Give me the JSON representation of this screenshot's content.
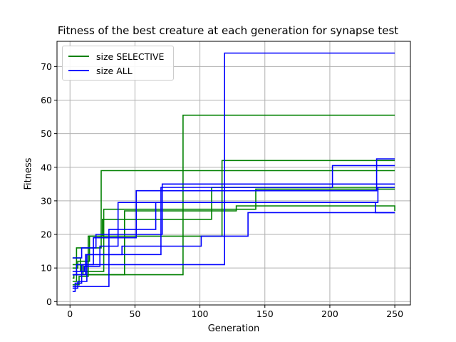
{
  "chart_data": {
    "type": "line",
    "title": "Fitness of the best creature at each generation for synapse test",
    "xlabel": "Generation",
    "ylabel": "Fitness",
    "xlim": [
      -10,
      262
    ],
    "ylim": [
      -1,
      77.5
    ],
    "xticks": [
      0,
      50,
      100,
      150,
      200,
      250
    ],
    "yticks": [
      0,
      10,
      20,
      30,
      40,
      50,
      60,
      70
    ],
    "grid": true,
    "legend_position": "top-left",
    "series": [
      {
        "name": "size SELECTIVE",
        "color": "#008000",
        "step": true,
        "x": [
          2,
          3,
          87,
          250
        ],
        "y": [
          7,
          8,
          55.5,
          55.5
        ]
      },
      {
        "name": "",
        "color": "#008000",
        "step": true,
        "x": [
          2,
          5,
          24,
          250
        ],
        "y": [
          6,
          16,
          39,
          39
        ]
      },
      {
        "name": "",
        "color": "#008000",
        "step": true,
        "x": [
          2,
          6,
          15,
          117,
          250
        ],
        "y": [
          10,
          12,
          19.5,
          42,
          42
        ]
      },
      {
        "name": "",
        "color": "#008000",
        "step": true,
        "x": [
          2,
          7,
          14,
          25,
          109,
          250
        ],
        "y": [
          5,
          7.5,
          19.5,
          24.5,
          34,
          34
        ]
      },
      {
        "name": "",
        "color": "#008000",
        "step": true,
        "x": [
          2,
          8,
          26,
          143,
          250
        ],
        "y": [
          13,
          9,
          27.5,
          33.5,
          33.5
        ]
      },
      {
        "name": "",
        "color": "#008000",
        "step": true,
        "x": [
          2,
          10,
          42,
          128,
          250
        ],
        "y": [
          11,
          8,
          27,
          28.5,
          27
        ]
      },
      {
        "name": "size ALL",
        "color": "#0000ff",
        "step": true,
        "x": [
          2,
          4,
          9,
          119,
          250
        ],
        "y": [
          3,
          5.5,
          11,
          74,
          74
        ]
      },
      {
        "name": "",
        "color": "#0000ff",
        "step": true,
        "x": [
          2,
          5,
          18,
          51,
          236,
          250
        ],
        "y": [
          8,
          11,
          19,
          33,
          42.5,
          42.5
        ]
      },
      {
        "name": "",
        "color": "#0000ff",
        "step": true,
        "x": [
          2,
          6,
          13,
          70,
          202,
          250
        ],
        "y": [
          4,
          6,
          14,
          34,
          40.5,
          40.5
        ]
      },
      {
        "name": "",
        "color": "#0000ff",
        "step": true,
        "x": [
          2,
          9,
          20,
          71,
          250
        ],
        "y": [
          13,
          16,
          20,
          35,
          35
        ]
      },
      {
        "name": "",
        "color": "#0000ff",
        "step": true,
        "x": [
          2,
          11,
          23,
          37,
          237,
          250
        ],
        "y": [
          9,
          10.5,
          16.5,
          29.5,
          34,
          34
        ]
      },
      {
        "name": "",
        "color": "#0000ff",
        "step": true,
        "x": [
          2,
          30,
          66,
          235,
          250
        ],
        "y": [
          4.5,
          21.5,
          29.5,
          26.5,
          26.5
        ]
      },
      {
        "name": "",
        "color": "#0000ff",
        "step": true,
        "x": [
          2,
          12,
          40,
          101,
          137,
          250
        ],
        "y": [
          8,
          14,
          16.5,
          19.5,
          26.5,
          26.5
        ]
      }
    ]
  }
}
